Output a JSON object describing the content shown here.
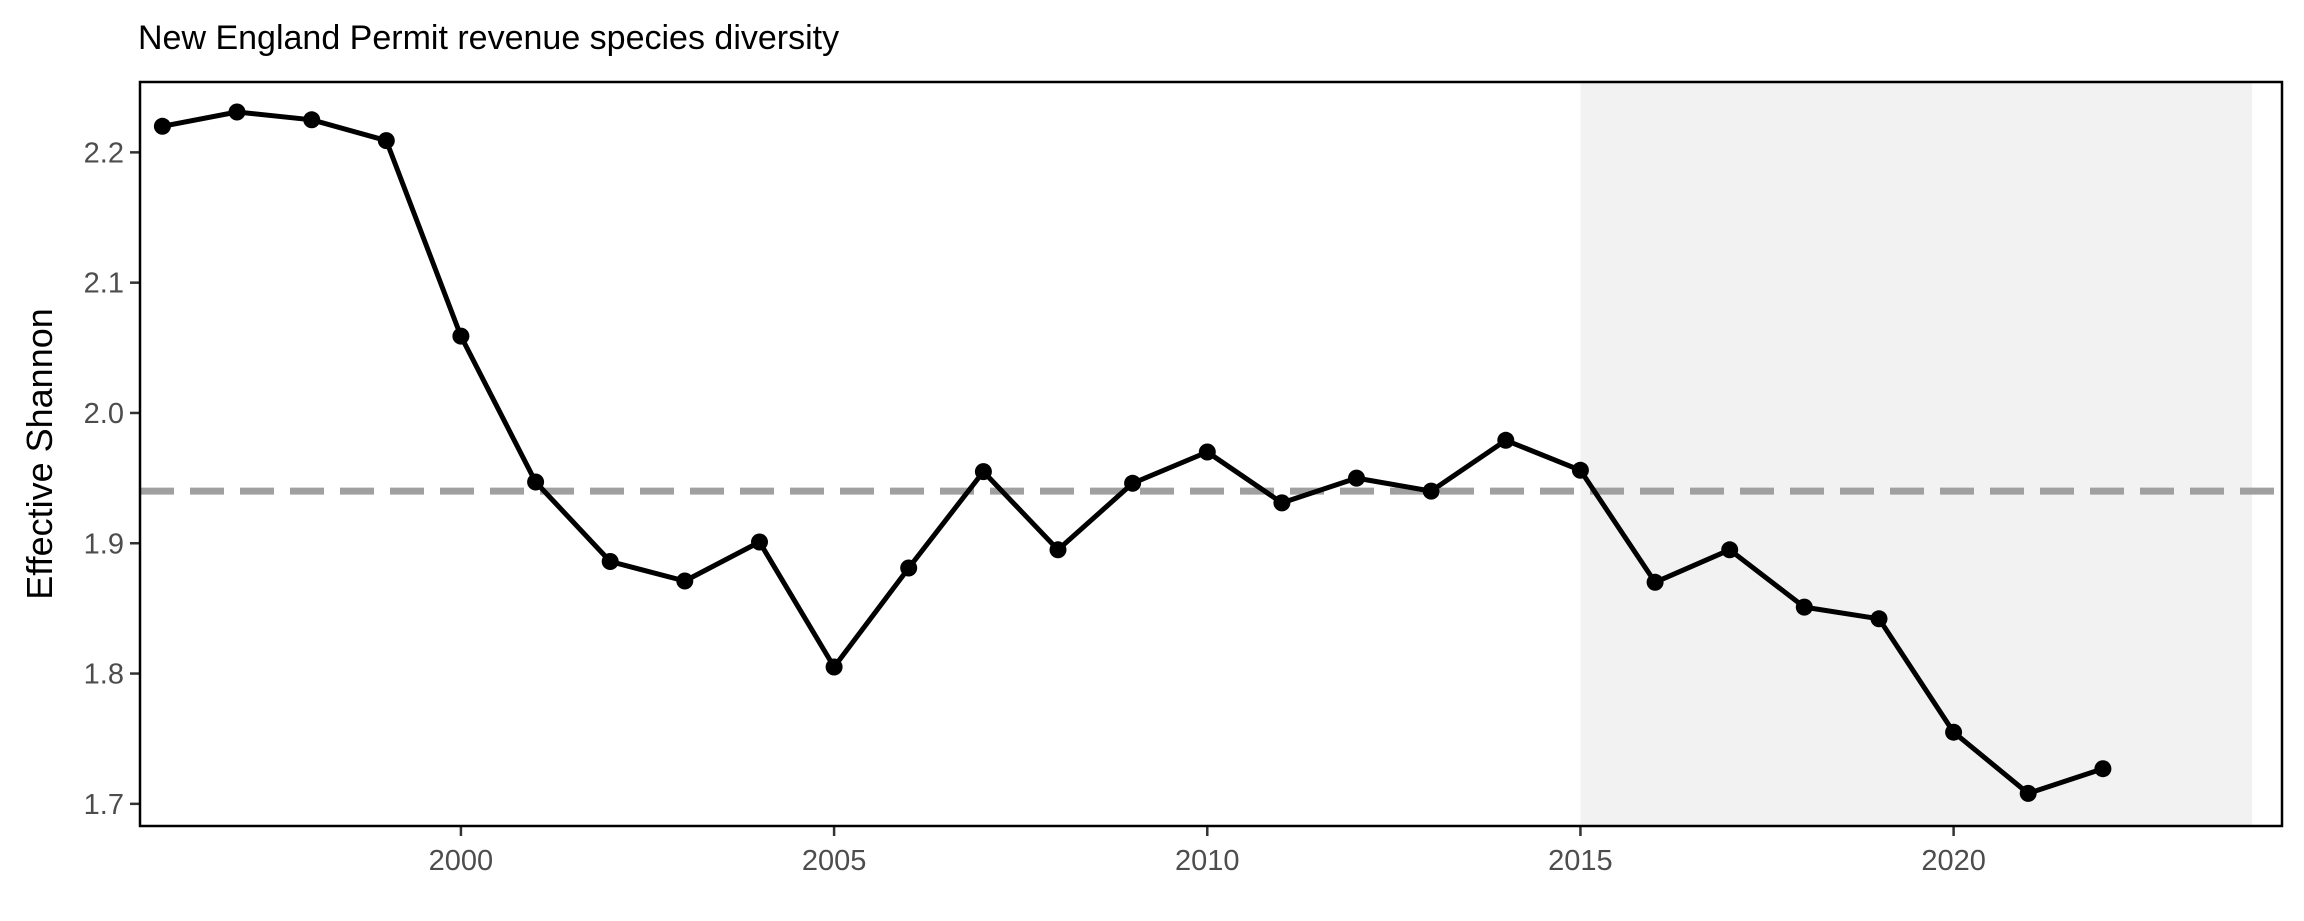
{
  "chart_data": {
    "type": "line",
    "title": "New England Permit revenue species diversity",
    "xlabel": "",
    "ylabel": "Effective Shannon",
    "xlim": [
      1995.7,
      2024.4
    ],
    "ylim": [
      1.683,
      2.254
    ],
    "x_ticks": [
      2000,
      2005,
      2010,
      2015,
      2020
    ],
    "y_ticks": [
      1.7,
      1.8,
      1.9,
      2.0,
      2.1,
      2.2
    ],
    "y_tick_labels": [
      "1.7",
      "1.8",
      "1.9",
      "2.0",
      "2.1",
      "2.2"
    ],
    "grid": false,
    "legend": "none",
    "reference_line": {
      "y": 1.94,
      "style": "dashed",
      "color": "#a0a0a0"
    },
    "shaded_region": {
      "x_start": 2015,
      "x_end": 2024,
      "color": "#f2f2f2"
    },
    "series": [
      {
        "color": "#000000",
        "x": [
          1996,
          1997,
          1998,
          1999,
          2000,
          2001,
          2002,
          2003,
          2004,
          2005,
          2006,
          2007,
          2008,
          2009,
          2010,
          2011,
          2012,
          2013,
          2014,
          2015,
          2016,
          2017,
          2018,
          2019,
          2020,
          2021,
          2022
        ],
        "values": [
          2.22,
          2.231,
          2.225,
          2.209,
          2.059,
          1.947,
          1.886,
          1.871,
          1.901,
          1.805,
          1.881,
          1.955,
          1.895,
          1.946,
          1.97,
          1.931,
          1.95,
          1.94,
          1.979,
          1.956,
          1.87,
          1.895,
          1.851,
          1.842,
          1.755,
          1.708,
          1.727
        ]
      }
    ]
  }
}
